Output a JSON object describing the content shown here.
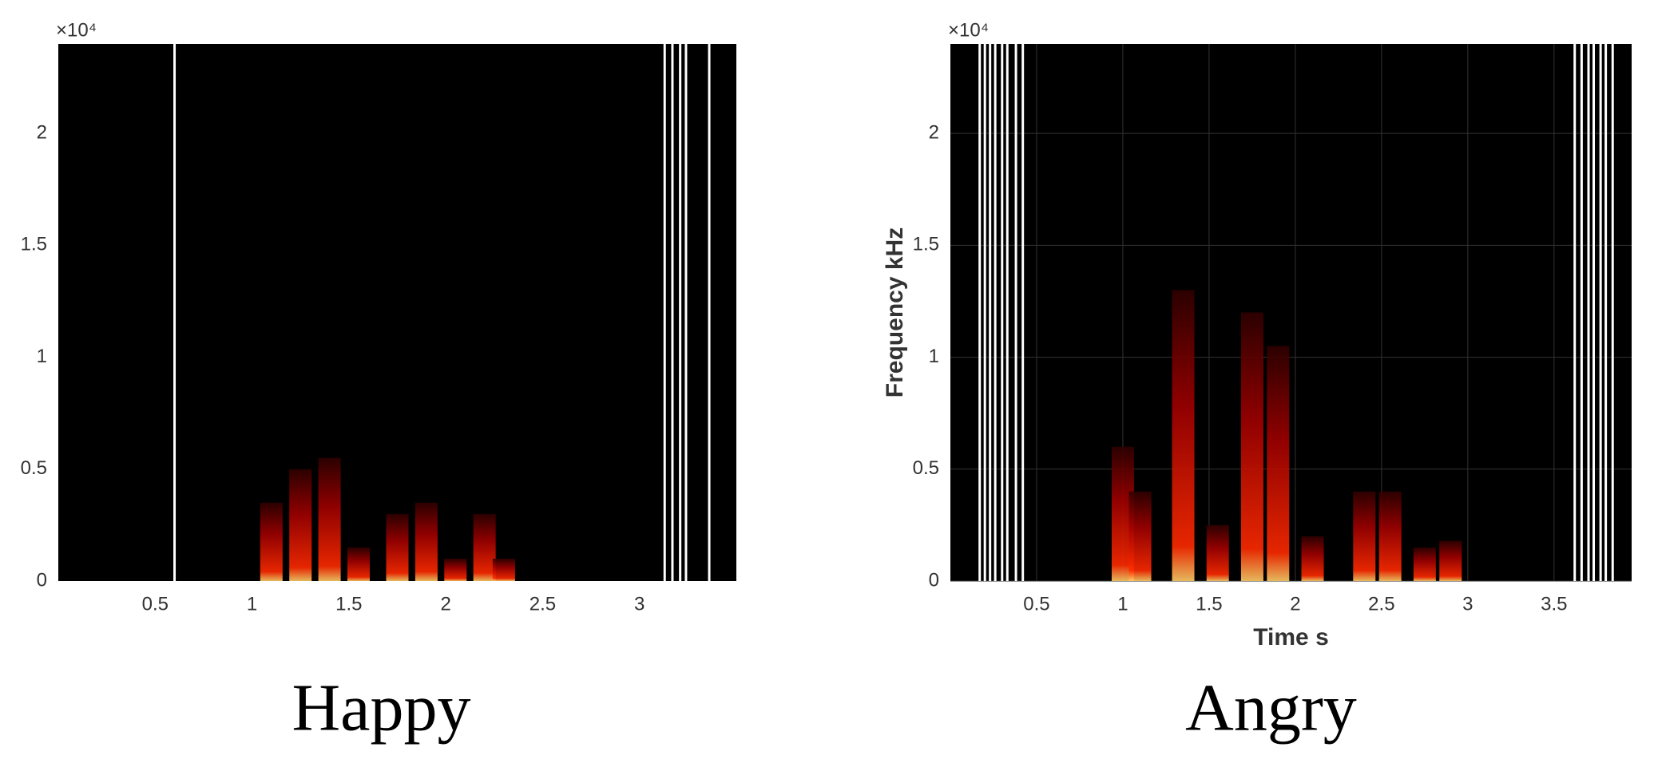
{
  "chart_data": [
    {
      "type": "spectrogram",
      "caption": "Happy",
      "y_exponent_label": "×10⁴",
      "xlim": [
        0,
        3.5
      ],
      "ylim": [
        0,
        24000
      ],
      "xticks": [
        0.5,
        1,
        1.5,
        2,
        2.5,
        3
      ],
      "yticks": [
        {
          "value": 0,
          "label": "0"
        },
        {
          "value": 5000,
          "label": "0.5"
        },
        {
          "value": 10000,
          "label": "1"
        },
        {
          "value": 15000,
          "label": "1.5"
        },
        {
          "value": 20000,
          "label": "2"
        }
      ],
      "grid": false,
      "color": "#ff2a00",
      "blank_frames": [
        0.6,
        3.13,
        3.17,
        3.21,
        3.24,
        3.36
      ],
      "x": [
        1.1,
        1.25,
        1.4,
        1.55,
        1.75,
        1.9,
        2.05,
        2.2,
        2.3
      ],
      "values": [
        3500,
        5000,
        5500,
        1500,
        3000,
        3500,
        1000,
        3000,
        1000
      ]
    },
    {
      "type": "spectrogram",
      "caption": "Angry",
      "y_exponent_label": "×10⁴",
      "xlabel": "Time s",
      "ylabel": "Frequency kHz",
      "xlim": [
        0,
        3.95
      ],
      "ylim": [
        0,
        24000
      ],
      "xticks": [
        0.5,
        1,
        1.5,
        2,
        2.5,
        3,
        3.5
      ],
      "yticks": [
        {
          "value": 0,
          "label": "0"
        },
        {
          "value": 5000,
          "label": "0.5"
        },
        {
          "value": 10000,
          "label": "1"
        },
        {
          "value": 15000,
          "label": "1.5"
        },
        {
          "value": 20000,
          "label": "2"
        }
      ],
      "grid": true,
      "color": "#ff2a00",
      "blank_frames": [
        0.17,
        0.2,
        0.23,
        0.26,
        0.3,
        0.33,
        0.38,
        0.42,
        3.62,
        3.66,
        3.7,
        3.73,
        3.77,
        3.8,
        3.84
      ],
      "x": [
        1.0,
        1.1,
        1.35,
        1.55,
        1.75,
        1.9,
        2.1,
        2.4,
        2.55,
        2.75,
        2.9
      ],
      "values": [
        6000,
        4000,
        13000,
        2500,
        12000,
        10500,
        2000,
        4000,
        4000,
        1500,
        1800
      ]
    }
  ]
}
